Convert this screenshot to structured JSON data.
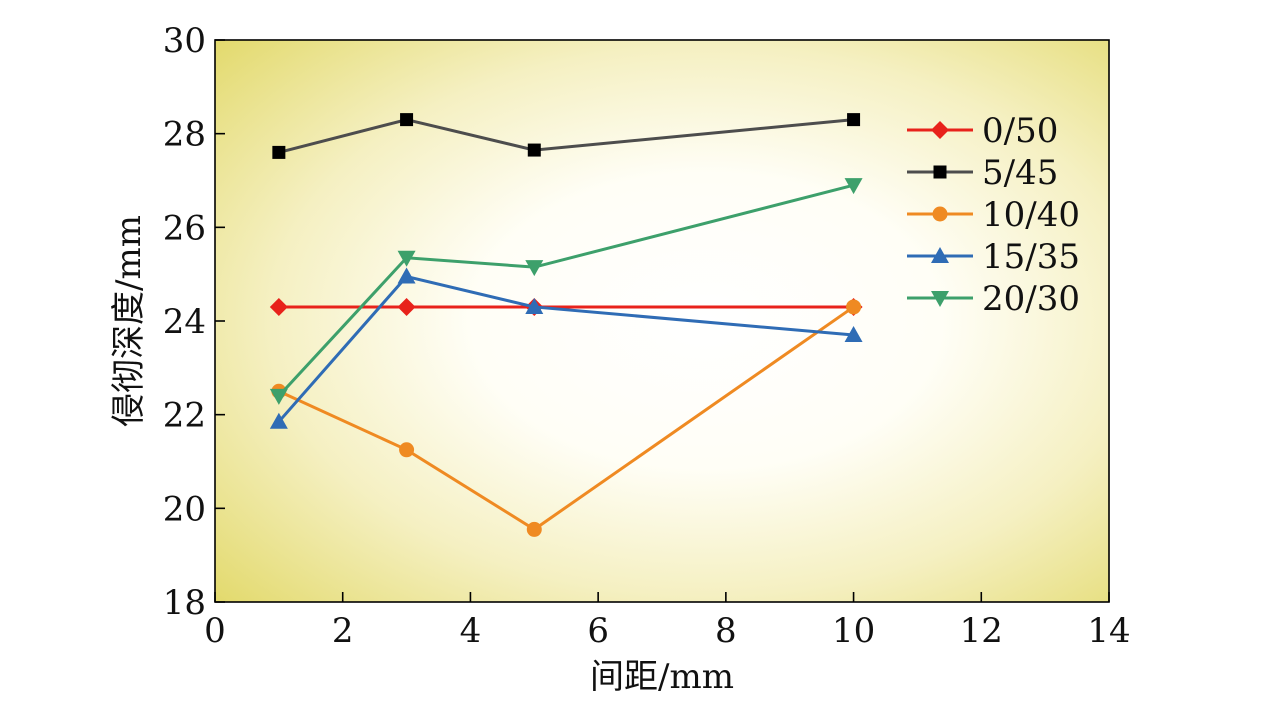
{
  "chart_data": {
    "type": "line",
    "title": "",
    "xlabel": "间距/mm",
    "ylabel": "侵彻深度/mm",
    "xlim": [
      0,
      14
    ],
    "ylim": [
      18,
      30
    ],
    "xticks": [
      0,
      2,
      4,
      6,
      8,
      10,
      12,
      14
    ],
    "yticks": [
      18,
      20,
      22,
      24,
      26,
      28,
      30
    ],
    "grid": false,
    "legend_position": "right",
    "background": "yellow radial gradient (white center, yellow corners)",
    "x": [
      1,
      3,
      5,
      10
    ],
    "series": [
      {
        "name": "0/50",
        "values": [
          24.3,
          24.3,
          24.3,
          24.3
        ],
        "color": "#e8221b",
        "marker": "diamond"
      },
      {
        "name": "5/45",
        "values": [
          27.6,
          28.3,
          27.65,
          28.3
        ],
        "color": "#4d4d4d",
        "marker_color": "#000000",
        "marker": "square"
      },
      {
        "name": "10/40",
        "values": [
          22.5,
          21.25,
          19.55,
          24.3
        ],
        "color": "#ef8a22",
        "marker": "circle"
      },
      {
        "name": "15/35",
        "values": [
          21.85,
          24.95,
          24.3,
          23.7
        ],
        "color": "#2f6cb5",
        "marker": "triangle-up"
      },
      {
        "name": "20/30",
        "values": [
          22.4,
          25.35,
          25.15,
          26.9
        ],
        "color": "#3da06b",
        "marker": "triangle-down"
      }
    ]
  }
}
